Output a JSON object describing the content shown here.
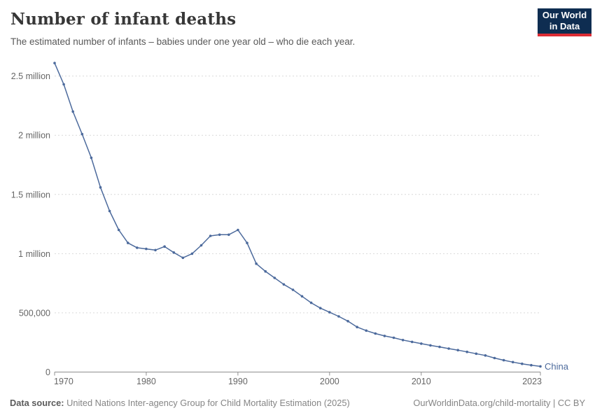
{
  "header": {
    "title": "Number of infant deaths",
    "subtitle": "The estimated number of infants – babies under one year old – who die each year.",
    "logo": {
      "line1": "Our World",
      "line2": "in Data",
      "bg_color": "#0e2d51",
      "accent_color": "#dc2c34"
    }
  },
  "chart_data": {
    "type": "line",
    "title": "Number of infant deaths",
    "xlabel": "",
    "ylabel": "",
    "xlim": [
      1970,
      2023
    ],
    "ylim": [
      0,
      2640000
    ],
    "grid": "horizontal-dashed",
    "legend_position": "end-of-line",
    "x": [
      1970,
      1971,
      1972,
      1973,
      1974,
      1975,
      1976,
      1977,
      1978,
      1979,
      1980,
      1981,
      1982,
      1983,
      1984,
      1985,
      1986,
      1987,
      1988,
      1989,
      1990,
      1991,
      1992,
      1993,
      1994,
      1995,
      1996,
      1997,
      1998,
      1999,
      2000,
      2001,
      2002,
      2003,
      2004,
      2005,
      2006,
      2007,
      2008,
      2009,
      2010,
      2011,
      2012,
      2013,
      2014,
      2015,
      2016,
      2017,
      2018,
      2019,
      2020,
      2021,
      2022,
      2023
    ],
    "series": [
      {
        "name": "China",
        "color": "#4C6A9C",
        "values": [
          2610000,
          2430000,
          2200000,
          2010000,
          1810000,
          1560000,
          1360000,
          1200000,
          1090000,
          1050000,
          1040000,
          1030000,
          1060000,
          1010000,
          965000,
          1000000,
          1070000,
          1150000,
          1160000,
          1160000,
          1200000,
          1090000,
          915000,
          850000,
          795000,
          740000,
          695000,
          640000,
          585000,
          540000,
          505000,
          470000,
          430000,
          380000,
          350000,
          325000,
          305000,
          290000,
          270000,
          255000,
          240000,
          225000,
          212000,
          198000,
          185000,
          170000,
          155000,
          140000,
          118000,
          100000,
          84000,
          70000,
          58000,
          48000
        ]
      }
    ],
    "y_ticks": [
      {
        "v": 0,
        "label": "0"
      },
      {
        "v": 500000,
        "label": "500,000"
      },
      {
        "v": 1000000,
        "label": "1 million"
      },
      {
        "v": 1500000,
        "label": "1.5 million"
      },
      {
        "v": 2000000,
        "label": "2 million"
      },
      {
        "v": 2500000,
        "label": "2.5 million"
      }
    ],
    "x_ticks": [
      1970,
      1980,
      1990,
      2000,
      2010,
      2023
    ],
    "colors": {
      "grid": "#d9d9d9",
      "axis": "#8f8f8f",
      "tick_text": "#666666"
    }
  },
  "footer": {
    "source_label": "Data source:",
    "source_text": " United Nations Inter-agency Group for Child Mortality Estimation (2025)",
    "link_text": "OurWorldinData.org/child-mortality | CC BY"
  }
}
